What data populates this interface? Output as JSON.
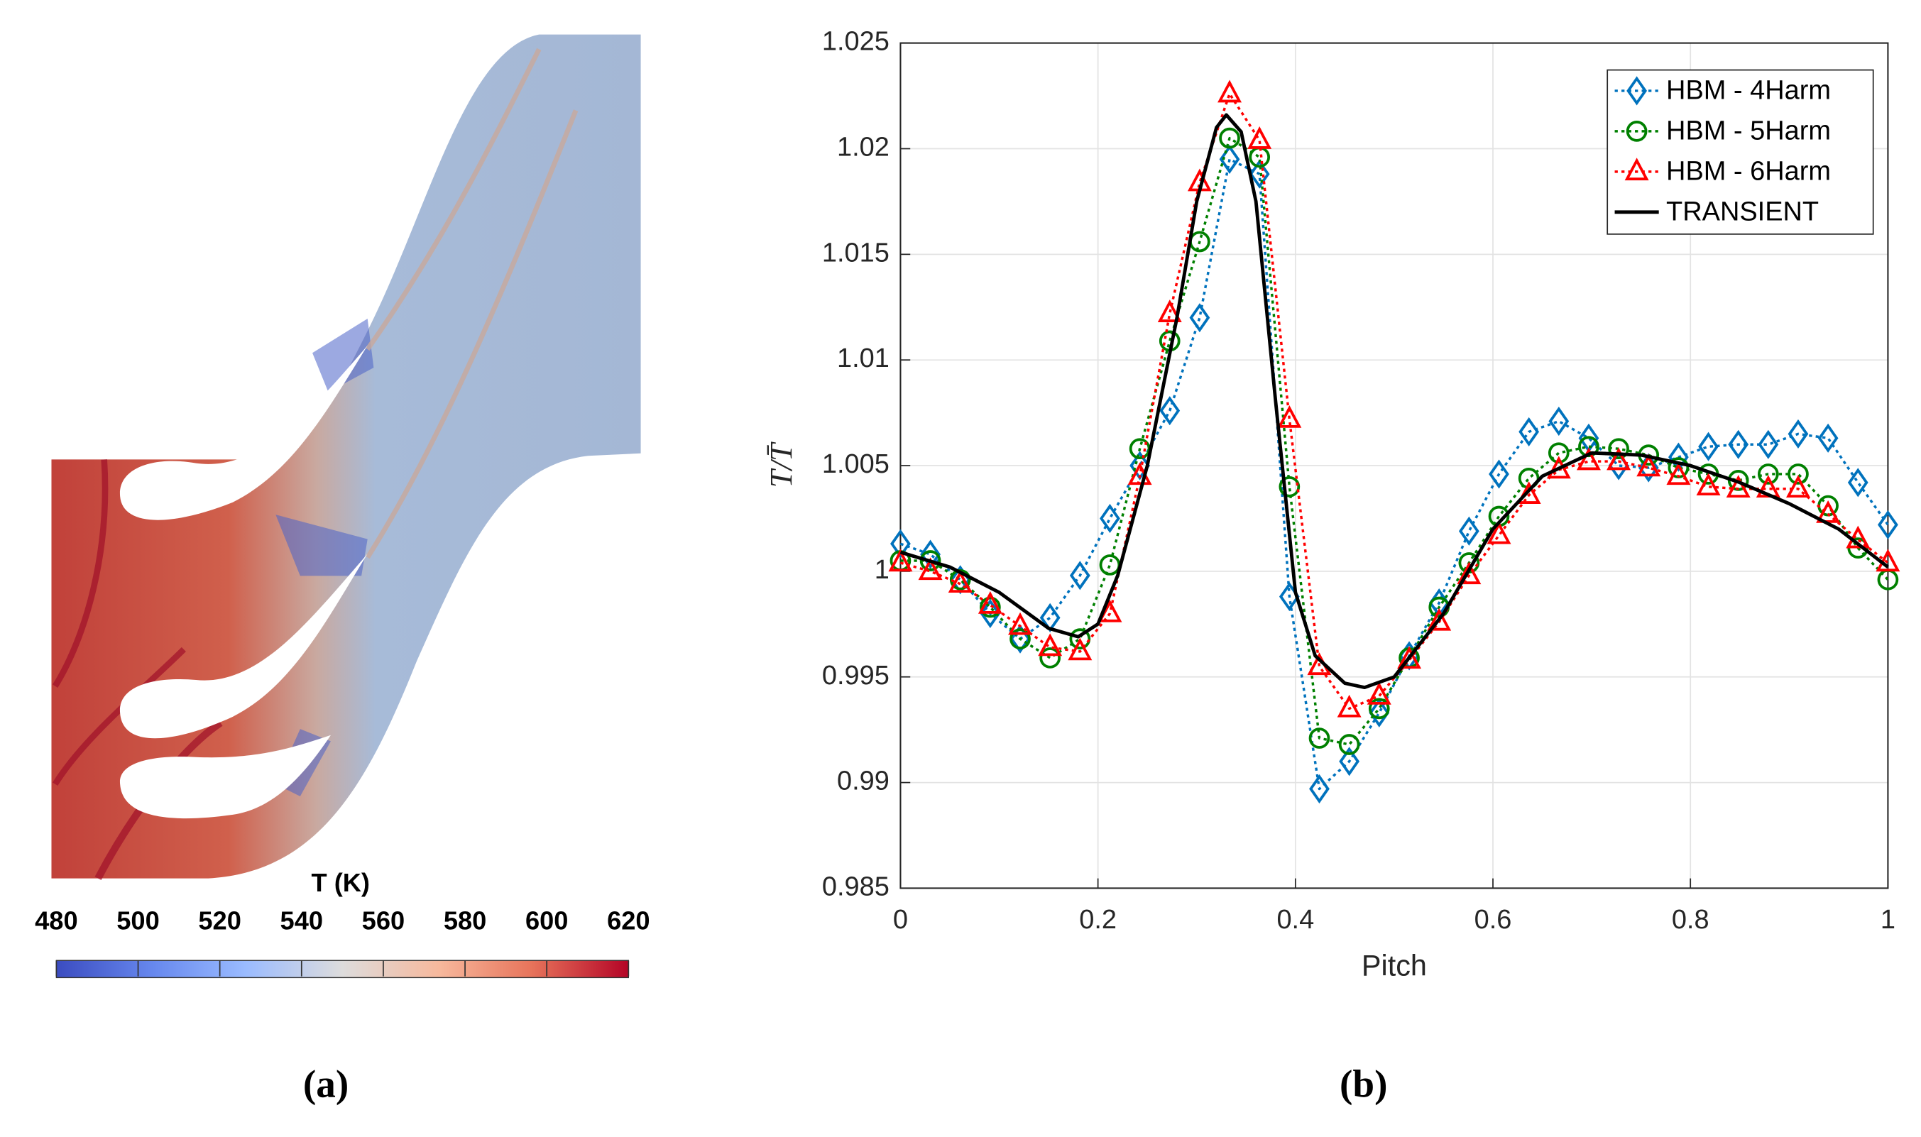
{
  "chart_data": [
    {
      "type": "heatmap",
      "colorbar_label": "T (K)",
      "clim": [
        480,
        620
      ],
      "cticks": [
        480,
        500,
        520,
        540,
        560,
        580,
        600,
        620
      ],
      "caption": "(a)"
    },
    {
      "type": "line",
      "caption": "(b)",
      "xlabel": "Pitch",
      "ylabel": "T/T̄",
      "xlim": [
        0,
        1
      ],
      "xticks": [
        0,
        0.2,
        0.4,
        0.6,
        0.8,
        1
      ],
      "ylim": [
        0.985,
        1.025
      ],
      "yticks": [
        0.985,
        0.99,
        0.995,
        1,
        1.005,
        1.01,
        1.015,
        1.02,
        1.025
      ],
      "grid": true,
      "legend": "northeast",
      "x": [
        0,
        0.0303,
        0.0606,
        0.0909,
        0.1212,
        0.1515,
        0.1818,
        0.2121,
        0.2424,
        0.2727,
        0.303,
        0.3333,
        0.3636,
        0.3939,
        0.4242,
        0.4545,
        0.4848,
        0.5152,
        0.5455,
        0.5758,
        0.6061,
        0.6364,
        0.6667,
        0.697,
        0.7273,
        0.7576,
        0.7879,
        0.8182,
        0.8485,
        0.8788,
        0.9091,
        0.9394,
        0.9697,
        1
      ],
      "series": [
        {
          "name": "HBM - 4Harm",
          "color": "#0072bd",
          "marker": "diamond",
          "values": [
            1.0013,
            1.0008,
            0.9996,
            0.998,
            0.9968,
            0.9978,
            0.9998,
            1.0025,
            1.005,
            1.0076,
            1.012,
            1.0195,
            1.0188,
            0.9988,
            0.9897,
            0.991,
            0.9933,
            0.996,
            0.9985,
            1.0019,
            1.0046,
            1.0066,
            1.0071,
            1.0063,
            1.005,
            1.0049,
            1.0054,
            1.0059,
            1.006,
            1.006,
            1.0065,
            1.0063,
            1.0042,
            1.0022
          ]
        },
        {
          "name": "HBM - 5Harm",
          "color": "#008000",
          "marker": "circle",
          "values": [
            1.0005,
            1.0005,
            0.9996,
            0.9983,
            0.9968,
            0.9959,
            0.9968,
            1.0003,
            1.0058,
            1.0109,
            1.0156,
            1.0205,
            1.0196,
            1.004,
            0.9921,
            0.9918,
            0.9935,
            0.9959,
            0.9983,
            1.0004,
            1.0026,
            1.0044,
            1.0056,
            1.0059,
            1.0058,
            1.0055,
            1.0049,
            1.0046,
            1.0043,
            1.0046,
            1.0046,
            1.0031,
            1.0011,
            0.9996
          ]
        },
        {
          "name": "HBM - 6Harm",
          "color": "#ff0000",
          "marker": "triangle",
          "values": [
            1.0004,
            1.0,
            0.9994,
            0.9984,
            0.9974,
            0.9964,
            0.9962,
            0.998,
            1.0045,
            1.0122,
            1.0184,
            1.0226,
            1.0204,
            1.0072,
            0.9955,
            0.9935,
            0.9941,
            0.9958,
            0.9976,
            0.9998,
            1.0017,
            1.0036,
            1.0048,
            1.0052,
            1.0052,
            1.0049,
            1.0045,
            1.004,
            1.0039,
            1.0039,
            1.0039,
            1.0027,
            1.0015,
            1.0004
          ]
        },
        {
          "name": "TRANSIENT",
          "color": "#000000",
          "x": [
            0,
            0.05,
            0.1,
            0.15,
            0.18,
            0.2,
            0.22,
            0.25,
            0.28,
            0.3,
            0.32,
            0.33,
            0.345,
            0.36,
            0.38,
            0.4,
            0.42,
            0.45,
            0.47,
            0.5,
            0.55,
            0.6,
            0.65,
            0.7,
            0.75,
            0.8,
            0.85,
            0.9,
            0.95,
            1
          ],
          "values": [
            1.0009,
            1.0002,
            0.999,
            0.9973,
            0.9969,
            0.9975,
            0.9998,
            1.005,
            1.012,
            1.0175,
            1.021,
            1.0216,
            1.0208,
            1.0175,
            1.008,
            0.999,
            0.996,
            0.9947,
            0.9945,
            0.995,
            0.998,
            1.002,
            1.0045,
            1.0056,
            1.0055,
            1.005,
            1.0042,
            1.0032,
            1.002,
            1.0002
          ]
        }
      ]
    }
  ]
}
